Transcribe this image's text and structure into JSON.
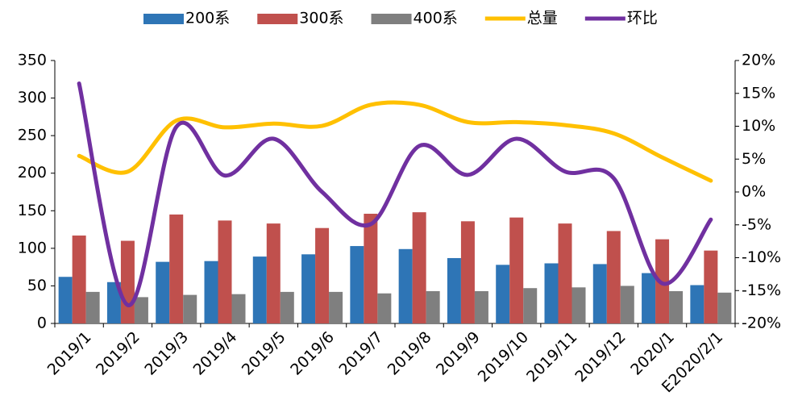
{
  "chart_data": {
    "type": "bar-line",
    "categories": [
      "2019/1",
      "2019/2",
      "2019/3",
      "2019/4",
      "2019/5",
      "2019/6",
      "2019/7",
      "2019/8",
      "2019/9",
      "2019/10",
      "2019/11",
      "2019/12",
      "2020/1",
      "E2020/2/1"
    ],
    "series": [
      {
        "name": "200系",
        "type": "bar",
        "color": "#2e75b6",
        "values": [
          62,
          55,
          82,
          83,
          89,
          92,
          103,
          99,
          87,
          78,
          80,
          79,
          67,
          51
        ]
      },
      {
        "name": "300系",
        "type": "bar",
        "color": "#c0504d",
        "values": [
          117,
          110,
          145,
          137,
          133,
          127,
          146,
          148,
          136,
          141,
          133,
          123,
          112,
          97
        ]
      },
      {
        "name": "400系",
        "type": "bar",
        "color": "#7f7f7f",
        "values": [
          42,
          35,
          38,
          39,
          42,
          42,
          40,
          43,
          43,
          47,
          48,
          50,
          43,
          41
        ]
      },
      {
        "name": "总量",
        "type": "line",
        "color": "#ffc000",
        "values": [
          223,
          202,
          270,
          261,
          266,
          263,
          291,
          291,
          268,
          268,
          264,
          253,
          221,
          190
        ]
      },
      {
        "name": "环比",
        "type": "line",
        "axis": "y2",
        "color": "#7030a0",
        "values": [
          16.5,
          -17.2,
          9.9,
          2.5,
          8.1,
          0,
          -4.9,
          7.0,
          2.6,
          8.1,
          3.1,
          2.1,
          -13.9,
          -4.2
        ]
      }
    ],
    "ylim": [
      0,
      350
    ],
    "yticks": [
      0,
      50,
      100,
      150,
      200,
      250,
      300,
      350
    ],
    "y2lim": [
      -20,
      20
    ],
    "y2ticks": [
      {
        "value": -20,
        "label": "-20%"
      },
      {
        "value": -15,
        "label": "-15%"
      },
      {
        "value": -10,
        "label": "-10%"
      },
      {
        "value": -5,
        "label": "-5%"
      },
      {
        "value": 0,
        "label": "0%"
      },
      {
        "value": 5,
        "label": "5%"
      },
      {
        "value": 10,
        "label": "10%"
      },
      {
        "value": 15,
        "label": "15%"
      },
      {
        "value": 20,
        "label": "20%"
      }
    ],
    "legend": "top"
  }
}
